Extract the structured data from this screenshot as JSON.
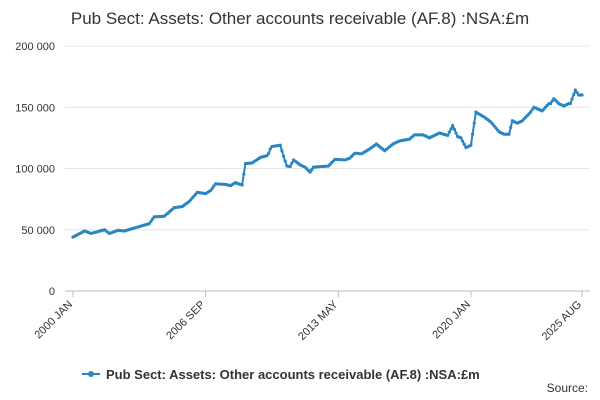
{
  "chart_data": {
    "type": "line",
    "title": "Pub Sect: Assets: Other accounts receivable (AF.8) :NSA:£m",
    "source": "Source:",
    "categories": [
      "2000 JAN",
      null,
      null,
      null,
      null,
      null,
      null,
      null,
      null,
      null,
      null,
      null,
      null,
      null,
      null,
      null,
      null,
      null,
      null,
      null,
      null,
      null,
      null,
      null,
      null,
      null,
      null,
      null,
      null,
      null,
      null,
      null,
      null,
      null,
      null,
      null,
      null,
      null,
      null,
      null,
      null,
      null,
      null,
      null,
      null,
      null,
      null,
      null,
      null,
      null,
      null,
      null,
      null,
      null,
      null,
      null,
      null,
      null,
      null,
      null,
      null,
      null,
      null,
      null,
      null,
      null,
      null,
      null,
      null,
      null,
      null,
      null,
      null,
      null,
      null,
      null,
      null,
      null,
      null,
      null,
      "2006 SEP",
      null,
      null,
      null,
      null,
      null,
      null,
      null,
      null,
      null,
      null,
      null,
      null,
      null,
      null,
      null,
      null,
      null,
      null,
      null,
      null,
      null,
      null,
      null,
      null,
      null,
      null,
      null,
      null,
      null,
      null,
      null,
      null,
      null,
      null,
      null,
      null,
      null,
      null,
      null,
      null,
      null,
      null,
      null,
      null,
      null,
      null,
      null,
      null,
      null,
      null,
      null,
      null,
      null,
      null,
      null,
      null,
      null,
      null,
      null,
      null,
      null,
      null,
      null,
      null,
      null,
      null,
      null,
      null,
      null,
      null,
      null,
      null,
      null,
      null,
      null,
      null,
      null,
      null,
      null,
      "2013 MAY",
      null,
      null,
      null,
      null,
      null,
      null,
      null,
      null,
      null,
      null,
      null,
      null,
      null,
      null,
      null,
      null,
      null,
      null,
      null,
      null,
      null,
      null,
      null,
      null,
      null,
      null,
      null,
      null,
      null,
      null,
      null,
      null,
      null,
      null,
      null,
      null,
      null,
      null,
      null,
      null,
      null,
      null,
      null,
      null,
      null,
      null,
      null,
      null,
      null,
      null,
      null,
      null,
      null,
      null,
      null,
      null,
      null,
      null,
      null,
      null,
      null,
      null,
      null,
      null,
      null,
      null,
      null,
      null,
      null,
      null,
      null,
      null,
      null,
      null,
      null,
      null,
      null,
      null,
      null,
      "2020 JAN",
      null,
      null,
      null,
      null,
      null,
      null,
      null,
      null,
      null,
      null,
      null,
      null,
      null,
      null,
      null,
      null,
      null,
      null,
      null,
      null,
      null,
      null,
      null,
      null,
      null,
      null,
      null,
      null,
      null,
      null,
      null,
      null,
      null,
      null,
      null,
      null,
      null,
      null,
      null,
      null,
      null,
      null,
      null,
      null,
      null,
      null,
      null,
      null,
      null,
      null,
      null,
      null,
      null,
      null,
      null,
      null,
      null,
      null,
      null,
      null,
      null,
      null,
      null,
      null,
      null,
      null,
      "2025 AUG"
    ],
    "series": [
      {
        "name": "Pub Sect: Assets: Other accounts receivable (AF.8) :NSA:£m",
        "color": "#2a86c0",
        "values": [
          44000,
          44700,
          45400,
          46100,
          46900,
          47600,
          48300,
          49000,
          48500,
          48000,
          47500,
          47000,
          47400,
          47800,
          48100,
          48500,
          48900,
          49300,
          49600,
          50000,
          49000,
          48000,
          47000,
          47500,
          48000,
          48500,
          49000,
          49500,
          49400,
          49300,
          49100,
          49000,
          49400,
          49800,
          50200,
          50600,
          51000,
          51400,
          51800,
          52200,
          52600,
          53000,
          53400,
          53800,
          54200,
          54600,
          55000,
          56800,
          58700,
          60500,
          60600,
          60700,
          60800,
          60800,
          60900,
          61000,
          62200,
          63300,
          64500,
          65700,
          66800,
          68000,
          68200,
          68400,
          68600,
          68800,
          69000,
          70000,
          71000,
          72000,
          73000,
          74500,
          76000,
          77600,
          79000,
          80500,
          80300,
          80100,
          79900,
          79700,
          79500,
          80300,
          81200,
          82000,
          83800,
          85700,
          87500,
          87400,
          87300,
          87200,
          87200,
          87100,
          87000,
          86700,
          86300,
          86000,
          86800,
          87700,
          88500,
          88000,
          87500,
          87000,
          86500,
          95300,
          104000,
          104100,
          104300,
          104400,
          104500,
          105400,
          106300,
          107200,
          108100,
          109000,
          109400,
          109800,
          110100,
          110500,
          112300,
          116000,
          118000,
          118200,
          118400,
          118600,
          118800,
          119000,
          114500,
          110000,
          106000,
          102000,
          101800,
          101500,
          104300,
          107000,
          106000,
          105000,
          104000,
          103000,
          102300,
          101700,
          101000,
          99700,
          98300,
          97000,
          99000,
          101000,
          101100,
          101300,
          101400,
          101500,
          101600,
          101700,
          101800,
          101900,
          102000,
          103400,
          104800,
          106100,
          107500,
          107400,
          107300,
          107200,
          107200,
          107100,
          107000,
          107500,
          108000,
          108500,
          109800,
          111200,
          112500,
          112400,
          112300,
          112100,
          112000,
          112800,
          113600,
          114400,
          115200,
          116000,
          117000,
          118000,
          119000,
          120000,
          118900,
          117800,
          116700,
          115600,
          114500,
          115600,
          116700,
          117800,
          118900,
          120000,
          120600,
          121300,
          121900,
          122500,
          122800,
          123000,
          123300,
          123500,
          123800,
          124000,
          125200,
          126300,
          127500,
          127500,
          127500,
          127500,
          127500,
          127500,
          126900,
          126300,
          125600,
          125000,
          125700,
          126300,
          127000,
          127700,
          128300,
          129000,
          128600,
          128200,
          127800,
          127400,
          127000,
          129700,
          132300,
          135000,
          132000,
          129000,
          126000,
          125500,
          125000,
          122300,
          119700,
          117000,
          117700,
          118300,
          119000,
          128000,
          137000,
          146000,
          145200,
          144400,
          143600,
          142800,
          142000,
          141000,
          140000,
          139000,
          138000,
          136400,
          134800,
          133200,
          131600,
          130000,
          129300,
          128700,
          128000,
          128000,
          128000,
          128000,
          133500,
          139000,
          138300,
          137700,
          137000,
          137700,
          138300,
          139000,
          140400,
          141800,
          143200,
          144600,
          146000,
          148000,
          150000,
          149400,
          148800,
          148200,
          147600,
          147000,
          148500,
          150000,
          151500,
          153000,
          153000,
          155000,
          157000,
          155700,
          154300,
          153000,
          152300,
          151700,
          151000,
          151700,
          152300,
          153000,
          153000,
          156700,
          160300,
          164000,
          162000,
          160000,
          160000,
          160000
        ]
      }
    ],
    "ylim": [
      0,
      200000
    ],
    "yticks": [
      0,
      {
        "value": 50000,
        "label": "50 000"
      },
      {
        "value": 100000,
        "label": "100 000"
      },
      {
        "value": 150000,
        "label": "150 000"
      },
      {
        "value": 200000,
        "label": "200 000"
      }
    ],
    "grid": true
  }
}
